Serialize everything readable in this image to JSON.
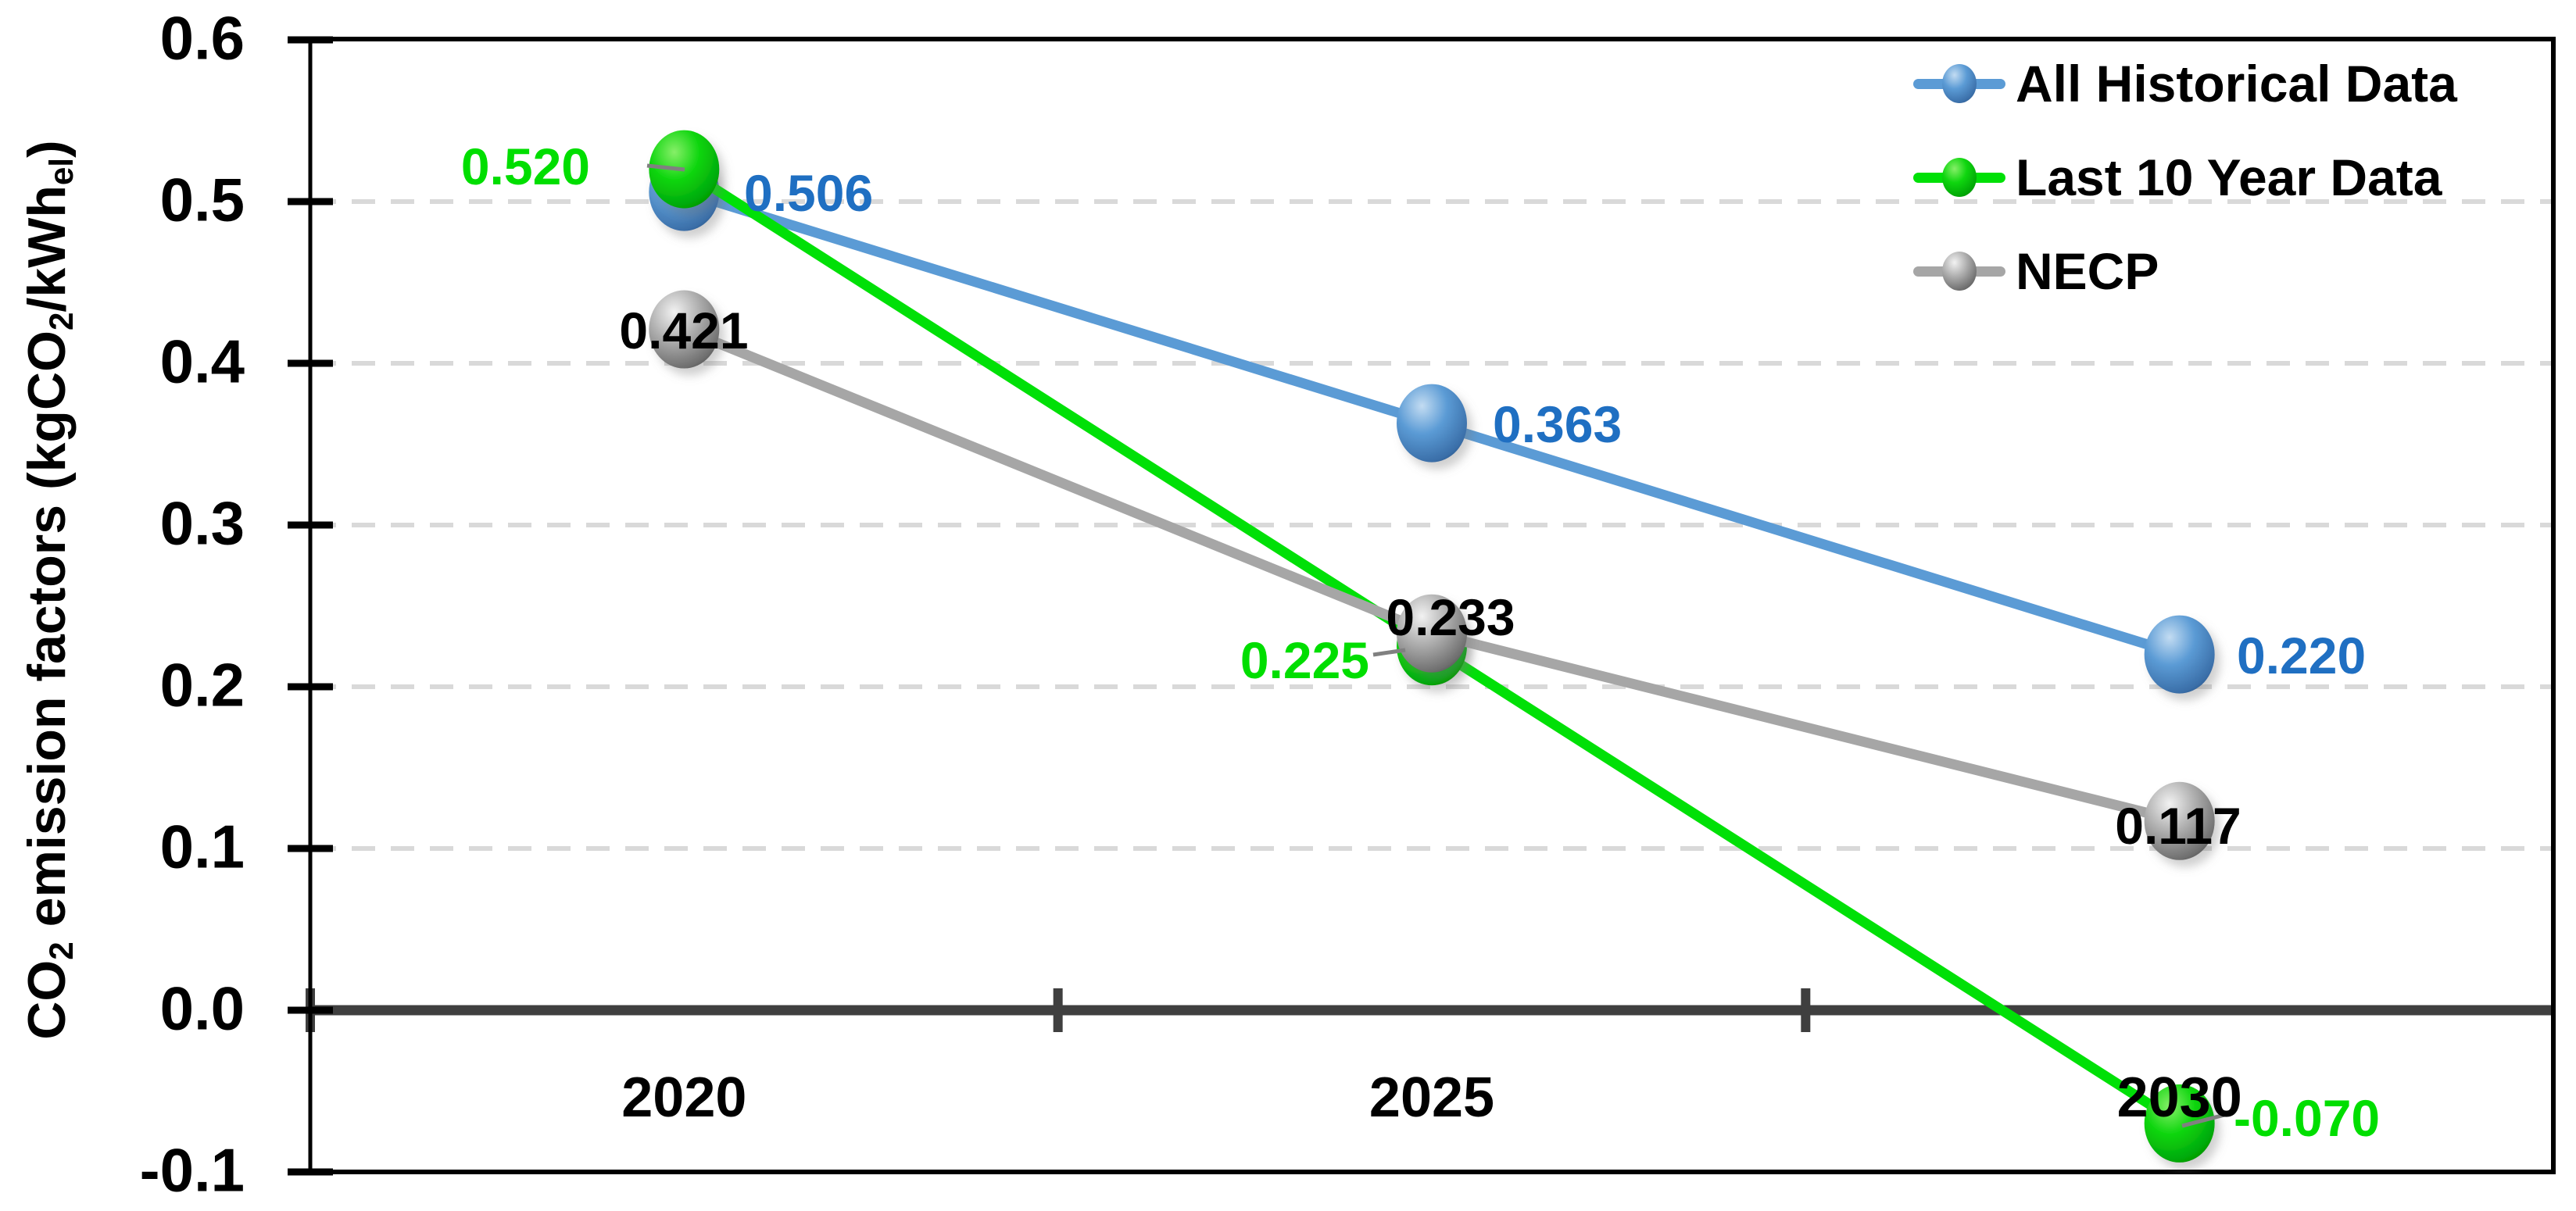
{
  "chart_data": {
    "type": "line",
    "categories": [
      "2020",
      "2025",
      "2030"
    ],
    "series": [
      {
        "name": "All Historical Data",
        "line_color": "#5B9BD5",
        "label_color": "#1F6FC2",
        "values": [
          0.506,
          0.363,
          0.22
        ],
        "point_labels": [
          "0.506",
          "0.363",
          "0.220"
        ],
        "marker_stops": [
          "#C3DCF2",
          "#5B9BD5",
          "#3A6EA8",
          "#25507E"
        ]
      },
      {
        "name": "Last 10 Year Data",
        "line_color": "#00E007",
        "label_color": "#00DE00",
        "values": [
          0.52,
          0.225,
          -0.07
        ],
        "point_labels": [
          "0.520",
          "0.225",
          "-0.070"
        ],
        "marker_stops": [
          "#86EF68",
          "#0FD60F",
          "#00A506",
          "#037B02"
        ]
      },
      {
        "name": "NECP",
        "line_color": "#A6A6A6",
        "label_color": "#000000",
        "values": [
          0.421,
          0.233,
          0.117
        ],
        "point_labels": [
          "0.421",
          "0.233",
          "0.117"
        ],
        "marker_stops": [
          "#F2F2F2",
          "#AFAFAF",
          "#6E6E6E",
          "#474747"
        ]
      }
    ],
    "ylabel": "CO2 emission factors (kgCO2/kWhel)",
    "ylabel_parts": [
      {
        "t": "CO"
      },
      {
        "s": "2"
      },
      {
        "t": " emission factors (kgCO"
      },
      {
        "s": "2"
      },
      {
        "t": "/kWh"
      },
      {
        "s": "el"
      },
      {
        "t": ")"
      }
    ],
    "xlabel": "",
    "title": "",
    "ylim": [
      -0.1,
      0.6
    ],
    "ytick_labels": [
      "0.6",
      "0.5",
      "0.4",
      "0.3",
      "0.2",
      "0.1",
      "0.0",
      "-0.1"
    ],
    "gridline_values": [
      0.5,
      0.4,
      0.3,
      0.2,
      0.1
    ],
    "grid_style": "dashed horizontal",
    "legend_position": "top-right inside plot",
    "colors": {
      "gridline": "#D9D9D9",
      "zero_axis": "#3F3F3F",
      "plot_border": "#000000",
      "leader_line": "#808080",
      "tick_text": "#000000"
    }
  }
}
